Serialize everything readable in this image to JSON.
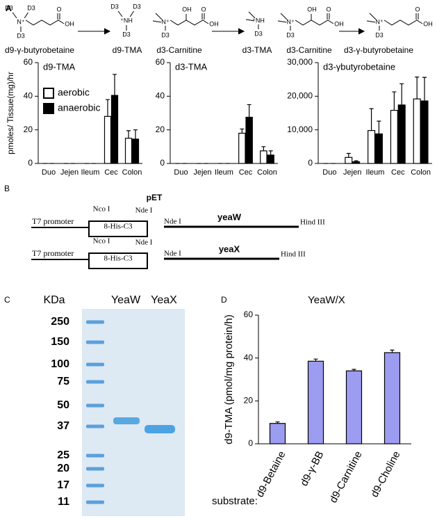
{
  "panel_labels": [
    "A",
    "B",
    "C",
    "D"
  ],
  "reactions": {
    "structures": [
      {
        "n": "N⁺",
        "methyls": [
          "D3",
          "D3",
          "D3"
        ],
        "carbonyl": "O",
        "acid": "OH"
      },
      {
        "n": "⁺NH",
        "methyls": [
          "D3",
          "D3",
          "D3"
        ]
      },
      {
        "n": "N⁺",
        "methyls": [
          "D3"
        ],
        "hydroxyl": "OH",
        "carbonyl": "O",
        "acid": "OH"
      },
      {
        "n": "⁺NH",
        "methyls": [
          "D3"
        ]
      },
      {
        "n": "N⁺",
        "methyls": [
          "D3"
        ],
        "hydroxyl": "OH",
        "carbonyl": "O",
        "acid": "OH"
      },
      {
        "n": "N⁺",
        "methyls": [
          "D3"
        ],
        "carbonyl": "O",
        "acid": "OH"
      }
    ],
    "names": [
      "d9-γ-butyrobetaine",
      "d9-TMA",
      "d3-Carnitine",
      "d3-TMA",
      "d3-Carnitine",
      "d3-γ-butyrobetaine"
    ]
  },
  "chart_data": [
    {
      "type": "bar",
      "title": "d9-TMA",
      "y_label": "pmoles/ Tissue(mg)/hr",
      "categories": [
        "Duo",
        "Jejen",
        "Ileum",
        "Cec",
        "Colon"
      ],
      "series": [
        {
          "name": "aerobic",
          "color": "#ffffff",
          "values": [
            0,
            0,
            0,
            28,
            15
          ],
          "errors": [
            0,
            0,
            0,
            10,
            4.5
          ]
        },
        {
          "name": "anaerobic",
          "color": "#000000",
          "values": [
            0,
            0,
            0,
            40.5,
            14.5
          ],
          "errors": [
            0,
            0,
            0,
            12.5,
            5.5
          ]
        }
      ],
      "ylim": [
        0,
        60
      ],
      "yticks": [
        0,
        20,
        40,
        60
      ],
      "legend": "upper-left"
    },
    {
      "type": "bar",
      "title": "d3-TMA",
      "categories": [
        "Duo",
        "Jejen",
        "Ileum",
        "Cec",
        "Colon"
      ],
      "series": [
        {
          "color": "#ffffff",
          "values": [
            0,
            0,
            0,
            18,
            7.5
          ],
          "errors": [
            0,
            0,
            0,
            2.5,
            2.5
          ]
        },
        {
          "color": "#000000",
          "values": [
            0,
            0,
            0,
            27.5,
            5
          ],
          "errors": [
            0,
            0,
            0,
            7.5,
            2.5
          ]
        }
      ],
      "ylim": [
        0,
        60
      ],
      "yticks": [
        0,
        20,
        40,
        60
      ]
    },
    {
      "type": "bar",
      "title": "d3-γbutyrobetaine",
      "categories": [
        "Duo",
        "Jejen",
        "Ileum",
        "Cec",
        "Colon"
      ],
      "series": [
        {
          "color": "#ffffff",
          "values": [
            0,
            1800,
            9800,
            15800,
            19200
          ],
          "errors": [
            0,
            1200,
            6500,
            5500,
            6500
          ]
        },
        {
          "color": "#000000",
          "values": [
            0,
            500,
            8800,
            17400,
            18600
          ],
          "errors": [
            0,
            300,
            3800,
            6300,
            7000
          ]
        }
      ],
      "ylim": [
        0,
        30000
      ],
      "yticks": [
        0,
        {
          "value": 10000,
          "label": "10,000"
        },
        {
          "value": 20000,
          "label": "20,000"
        },
        {
          "value": 30000,
          "label": "30,000"
        }
      ]
    },
    {
      "type": "bar",
      "title": "YeaW/X",
      "y_label": "d9-TMA (pmol/mg protein/h)",
      "x_label": "substrate:",
      "categories": [
        "d9-Betaine",
        "d9-γ-BB",
        "d9-Carnitine",
        "d9-Choline"
      ],
      "values": [
        9.5,
        38.5,
        34,
        42.5
      ],
      "errors": [
        0.7,
        1,
        0.7,
        1.2
      ],
      "color": "#9c9cf0",
      "ylim": [
        0,
        60
      ],
      "yticks": [
        0,
        20,
        40,
        60
      ]
    }
  ],
  "plasmid": {
    "title": "pET",
    "rows": [
      {
        "promoter": "T7 promoter",
        "box": "8-His-C3",
        "site_left": "Nco I",
        "site_right": "Nde I",
        "insert_start": "Nde I",
        "gene": "yeaW",
        "insert_end": "Hind III",
        "color": "#1f2aa8"
      },
      {
        "promoter": "T7 promoter",
        "box": "8-His-C3",
        "site_left": "Nco I",
        "site_right": "Nde I",
        "insert_start": "Nde I",
        "gene": "yeaX",
        "insert_end": "Hind III",
        "color": "#2aa5a5"
      }
    ]
  },
  "gel": {
    "kda_label": "KDa",
    "lanes": [
      "YeaW",
      "YeaX"
    ],
    "markers": [
      250,
      150,
      100,
      75,
      50,
      37,
      25,
      20,
      17,
      11
    ]
  }
}
